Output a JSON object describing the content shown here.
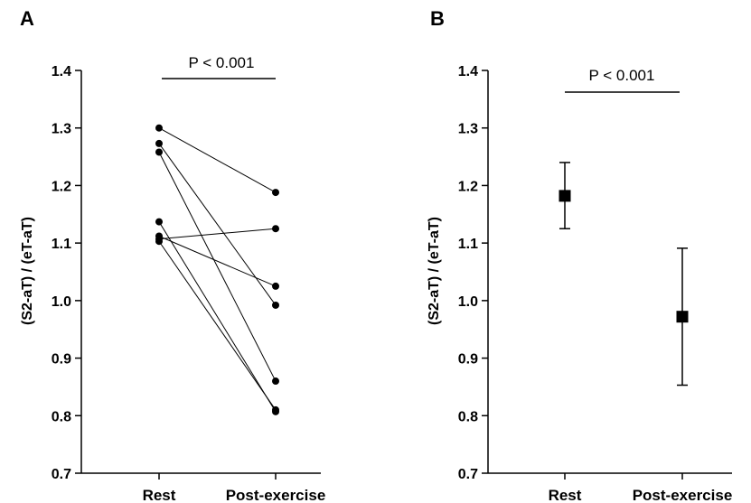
{
  "chart_data": [
    {
      "panel": "A",
      "type": "scatter",
      "subtype": "paired-lines",
      "ylabel": "(S2-aT) / (eT-aT)",
      "xlabel": "",
      "categories": [
        "Rest",
        "Post-exercise"
      ],
      "ylim": [
        0.7,
        1.4
      ],
      "yticks": [
        "0.7",
        "0.8",
        "0.9",
        "1.0",
        "1.1",
        "1.2",
        "1.3",
        "1.4"
      ],
      "annotation": "P < 0.001",
      "pairs": [
        {
          "rest": 1.3,
          "post": 1.188
        },
        {
          "rest": 1.273,
          "post": 0.992
        },
        {
          "rest": 1.258,
          "post": 0.86
        },
        {
          "rest": 1.137,
          "post": 0.807
        },
        {
          "rest": 1.112,
          "post": 1.025
        },
        {
          "rest": 1.107,
          "post": 1.125
        },
        {
          "rest": 1.103,
          "post": 0.81
        }
      ]
    },
    {
      "panel": "B",
      "type": "scatter",
      "subtype": "mean-with-error-bars",
      "ylabel": "(S2-aT) / (eT-aT)",
      "xlabel": "",
      "categories": [
        "Rest",
        "Post-exercise"
      ],
      "ylim": [
        0.7,
        1.4
      ],
      "yticks": [
        "0.7",
        "0.8",
        "0.9",
        "1.0",
        "1.1",
        "1.2",
        "1.3",
        "1.4"
      ],
      "annotation": "P < 0.001",
      "points": [
        {
          "category": "Rest",
          "mean": 1.182,
          "low": 1.125,
          "high": 1.24
        },
        {
          "category": "Post-exercise",
          "mean": 0.972,
          "low": 0.853,
          "high": 1.091
        }
      ]
    }
  ]
}
